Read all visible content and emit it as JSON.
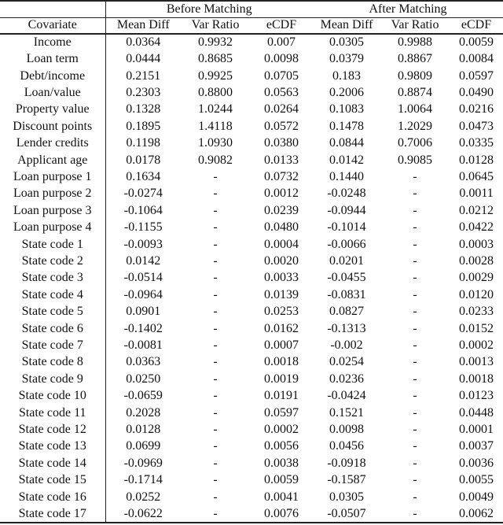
{
  "table": {
    "group_headers": {
      "before": "Before Matching",
      "after": "After Matching"
    },
    "column_headers": [
      "Covariate",
      "Mean Diff",
      "Var Ratio",
      "eCDF",
      "Mean Diff",
      "Var Ratio",
      "eCDF"
    ],
    "rows": [
      {
        "covariate": "Income",
        "values": [
          "0.0364",
          "0.9932",
          "0.007",
          "0.0305",
          "0.9988",
          "0.0059"
        ]
      },
      {
        "covariate": "Loan term",
        "values": [
          "0.0444",
          "0.8685",
          "0.0098",
          "0.0379",
          "0.8867",
          "0.0084"
        ]
      },
      {
        "covariate": "Debt/income",
        "values": [
          "0.2151",
          "0.9925",
          "0.0705",
          "0.183",
          "0.9809",
          "0.0597"
        ]
      },
      {
        "covariate": "Loan/value",
        "values": [
          "0.2303",
          "0.8800",
          "0.0563",
          "0.2006",
          "0.8874",
          "0.0490"
        ]
      },
      {
        "covariate": "Property value",
        "values": [
          "0.1328",
          "1.0244",
          "0.0264",
          "0.1083",
          "1.0064",
          "0.0216"
        ]
      },
      {
        "covariate": "Discount points",
        "values": [
          "0.1895",
          "1.4118",
          "0.0572",
          "0.1478",
          "1.2029",
          "0.0473"
        ]
      },
      {
        "covariate": "Lender credits",
        "values": [
          "0.1198",
          "1.0930",
          "0.0380",
          "0.0844",
          "0.7006",
          "0.0335"
        ]
      },
      {
        "covariate": "Applicant age",
        "values": [
          "0.0178",
          "0.9082",
          "0.0133",
          "0.0142",
          "0.9085",
          "0.0128"
        ]
      },
      {
        "covariate": "Loan purpose 1",
        "values": [
          "0.1634",
          "-",
          "0.0732",
          "0.1440",
          "-",
          "0.0645"
        ]
      },
      {
        "covariate": "Loan purpose 2",
        "values": [
          "-0.0274",
          "-",
          "0.0012",
          "-0.0248",
          "-",
          "0.0011"
        ]
      },
      {
        "covariate": "Loan purpose 3",
        "values": [
          "-0.1064",
          "-",
          "0.0239",
          "-0.0944",
          "-",
          "0.0212"
        ]
      },
      {
        "covariate": "Loan purpose 4",
        "values": [
          "-0.1155",
          "-",
          "0.0480",
          "-0.1014",
          "-",
          "0.0422"
        ]
      },
      {
        "covariate": "State code 1",
        "values": [
          "-0.0093",
          "-",
          "0.0004",
          "-0.0066",
          "-",
          "0.0003"
        ]
      },
      {
        "covariate": "State code 2",
        "values": [
          "0.0142",
          "-",
          "0.0020",
          "0.0201",
          "-",
          "0.0028"
        ]
      },
      {
        "covariate": "State code 3",
        "values": [
          "-0.0514",
          "-",
          "0.0033",
          "-0.0455",
          "-",
          "0.0029"
        ]
      },
      {
        "covariate": "State code 4",
        "values": [
          "-0.0964",
          "-",
          "0.0139",
          "-0.0831",
          "-",
          "0.0120"
        ]
      },
      {
        "covariate": "State code 5",
        "values": [
          "0.0901",
          "-",
          "0.0253",
          "0.0827",
          "-",
          "0.0233"
        ]
      },
      {
        "covariate": "State code 6",
        "values": [
          "-0.1402",
          "-",
          "0.0162",
          "-0.1313",
          "-",
          "0.0152"
        ]
      },
      {
        "covariate": "State code 7",
        "values": [
          "-0.0081",
          "-",
          "0.0007",
          "-0.002",
          "-",
          "0.0002"
        ]
      },
      {
        "covariate": "State code 8",
        "values": [
          "0.0363",
          "-",
          "0.0018",
          "0.0254",
          "-",
          "0.0013"
        ]
      },
      {
        "covariate": "State code 9",
        "values": [
          "0.0250",
          "-",
          "0.0019",
          "0.0236",
          "-",
          "0.0018"
        ]
      },
      {
        "covariate": "State code 10",
        "values": [
          "-0.0659",
          "-",
          "0.0191",
          "-0.0424",
          "-",
          "0.0123"
        ]
      },
      {
        "covariate": "State code 11",
        "values": [
          "0.2028",
          "-",
          "0.0597",
          "0.1521",
          "-",
          "0.0448"
        ]
      },
      {
        "covariate": "State code 12",
        "values": [
          "0.0128",
          "-",
          "0.0002",
          "0.0098",
          "-",
          "0.0001"
        ]
      },
      {
        "covariate": "State code 13",
        "values": [
          "0.0699",
          "-",
          "0.0056",
          "0.0456",
          "-",
          "0.0037"
        ]
      },
      {
        "covariate": "State code 14",
        "values": [
          "-0.0969",
          "-",
          "0.0038",
          "-0.0918",
          "-",
          "0.0036"
        ]
      },
      {
        "covariate": "State code 15",
        "values": [
          "-0.1714",
          "-",
          "0.0059",
          "-0.1587",
          "-",
          "0.0055"
        ]
      },
      {
        "covariate": "State code 16",
        "values": [
          "0.0252",
          "-",
          "0.0041",
          "0.0305",
          "-",
          "0.0049"
        ]
      },
      {
        "covariate": "State code 17",
        "values": [
          "-0.0622",
          "-",
          "0.0076",
          "-0.0507",
          "-",
          "0.0062"
        ]
      }
    ]
  }
}
